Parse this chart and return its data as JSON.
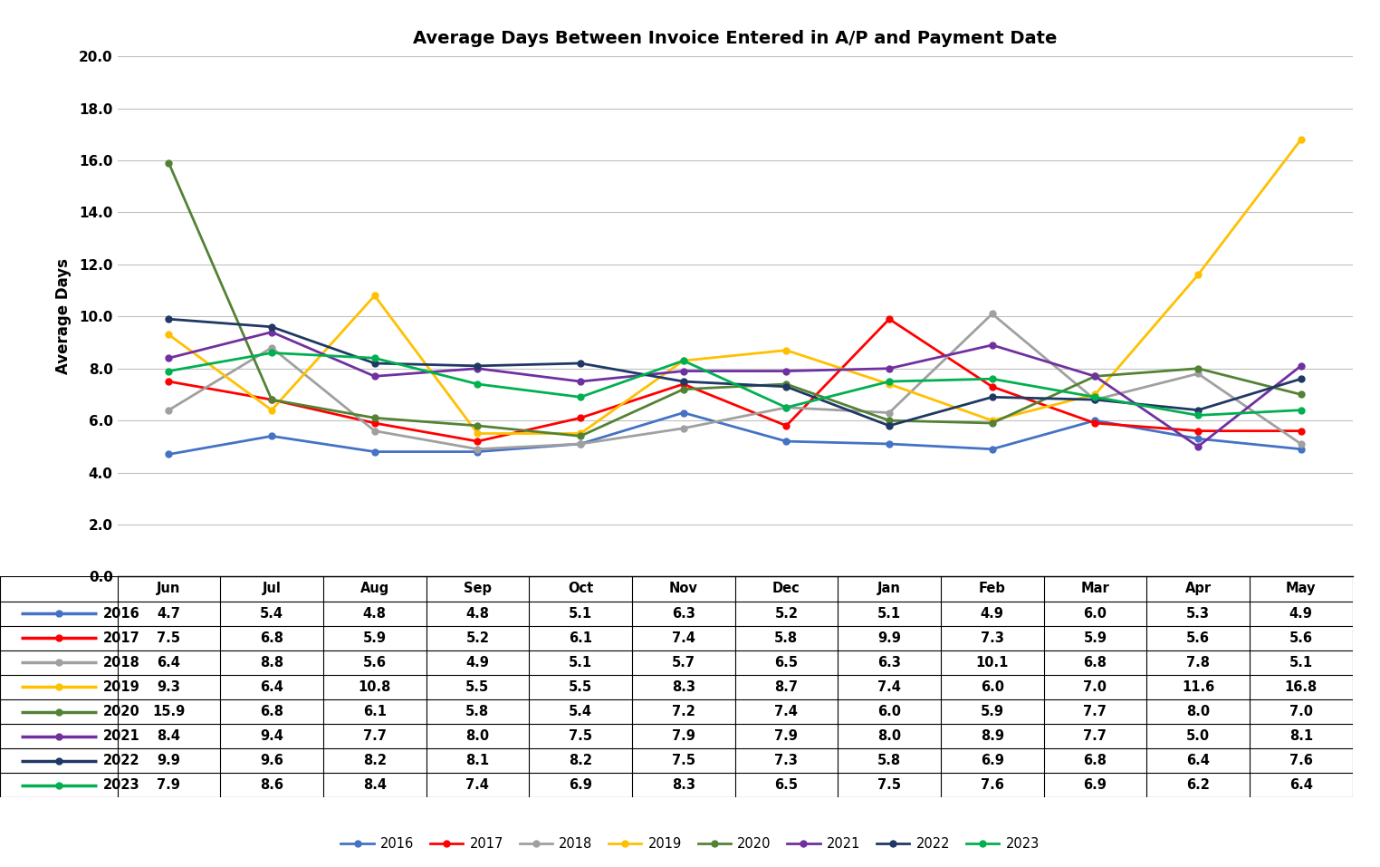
{
  "title": "Average Days Between Invoice Entered in A/P and Payment Date",
  "ylabel": "Average Days",
  "months": [
    "Jun",
    "Jul",
    "Aug",
    "Sep",
    "Oct",
    "Nov",
    "Dec",
    "Jan",
    "Feb",
    "Mar",
    "Apr",
    "May"
  ],
  "series": {
    "2016": [
      4.7,
      5.4,
      4.8,
      4.8,
      5.1,
      6.3,
      5.2,
      5.1,
      4.9,
      6.0,
      5.3,
      4.9
    ],
    "2017": [
      7.5,
      6.8,
      5.9,
      5.2,
      6.1,
      7.4,
      5.8,
      9.9,
      7.3,
      5.9,
      5.6,
      5.6
    ],
    "2018": [
      6.4,
      8.8,
      5.6,
      4.9,
      5.1,
      5.7,
      6.5,
      6.3,
      10.1,
      6.8,
      7.8,
      5.1
    ],
    "2019": [
      9.3,
      6.4,
      10.8,
      5.5,
      5.5,
      8.3,
      8.7,
      7.4,
      6.0,
      7.0,
      11.6,
      16.8
    ],
    "2020": [
      15.9,
      6.8,
      6.1,
      5.8,
      5.4,
      7.2,
      7.4,
      6.0,
      5.9,
      7.7,
      8.0,
      7.0
    ],
    "2021": [
      8.4,
      9.4,
      7.7,
      8.0,
      7.5,
      7.9,
      7.9,
      8.0,
      8.9,
      7.7,
      5.0,
      8.1
    ],
    "2022": [
      9.9,
      9.6,
      8.2,
      8.1,
      8.2,
      7.5,
      7.3,
      5.8,
      6.9,
      6.8,
      6.4,
      7.6
    ],
    "2023": [
      7.9,
      8.6,
      8.4,
      7.4,
      6.9,
      8.3,
      6.5,
      7.5,
      7.6,
      6.9,
      6.2,
      6.4
    ]
  },
  "colors": {
    "2016": "#4472C4",
    "2017": "#FF0000",
    "2018": "#A0A0A0",
    "2019": "#FFC000",
    "2020": "#548235",
    "2021": "#7030A0",
    "2022": "#1F3864",
    "2023": "#00B050"
  },
  "ylim": [
    0.0,
    20.0
  ],
  "yticks": [
    0.0,
    2.0,
    4.0,
    6.0,
    8.0,
    10.0,
    12.0,
    14.0,
    16.0,
    18.0,
    20.0
  ],
  "grid_color": "#C0C0C0",
  "marker": "o",
  "linewidth": 2.0,
  "markersize": 5
}
